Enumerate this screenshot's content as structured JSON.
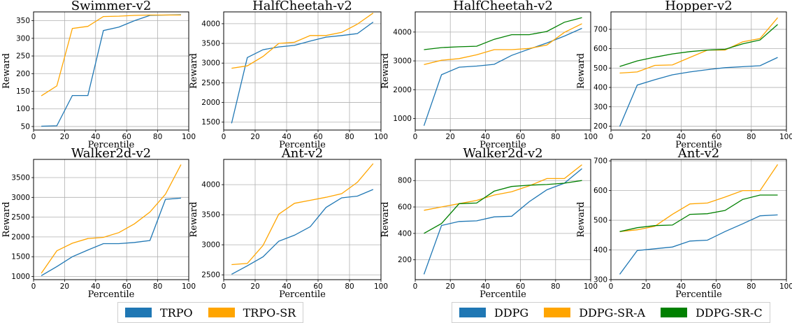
{
  "colors": {
    "TRPO": "#1f77b4",
    "TRPO-SR": "#ffa500",
    "DDPG": "#1f77b4",
    "DDPG-SR-A": "#ffa500",
    "DDPG-SR-C": "#008000"
  },
  "legends": [
    {
      "items": [
        "TRPO",
        "TRPO-SR"
      ]
    },
    {
      "items": [
        "DDPG",
        "DDPG-SR-A",
        "DDPG-SR-C"
      ]
    }
  ],
  "chart_data": [
    {
      "type": "line",
      "title": "Swimmer-v2",
      "xlabel": "Percentile",
      "ylabel": "Reward",
      "xlim": [
        0,
        100
      ],
      "ylim": [
        40,
        375
      ],
      "xticks": [
        0,
        20,
        40,
        60,
        80,
        100
      ],
      "yticks": [
        50,
        100,
        150,
        200,
        250,
        300,
        350
      ],
      "x": [
        5,
        15,
        25,
        35,
        45,
        55,
        65,
        75,
        85,
        95
      ],
      "series": [
        {
          "name": "TRPO",
          "values": [
            51,
            52,
            138,
            138,
            322,
            332,
            350,
            365,
            366,
            367
          ]
        },
        {
          "name": "TRPO-SR",
          "values": [
            137,
            165,
            328,
            334,
            362,
            363,
            365,
            366,
            366,
            366
          ]
        }
      ]
    },
    {
      "type": "line",
      "title": "HalfCheetah-v2",
      "xlabel": "Percentile",
      "ylabel": "Reward",
      "xlim": [
        0,
        100
      ],
      "ylim": [
        1300,
        4300
      ],
      "xticks": [
        0,
        20,
        40,
        60,
        80,
        100
      ],
      "yticks": [
        1500,
        2000,
        2500,
        3000,
        3500,
        4000
      ],
      "x": [
        5,
        15,
        25,
        35,
        45,
        55,
        65,
        75,
        85,
        95
      ],
      "series": [
        {
          "name": "TRPO",
          "values": [
            1470,
            3140,
            3340,
            3410,
            3450,
            3560,
            3660,
            3700,
            3750,
            4040
          ]
        },
        {
          "name": "TRPO-SR",
          "values": [
            2870,
            2930,
            3170,
            3500,
            3530,
            3700,
            3700,
            3780,
            3990,
            4270
          ]
        }
      ]
    },
    {
      "type": "line",
      "title": "HalfCheetah-v2",
      "xlabel": "Percentile",
      "ylabel": "Reward",
      "xlim": [
        0,
        100
      ],
      "ylim": [
        600,
        4700
      ],
      "xticks": [
        0,
        20,
        40,
        60,
        80,
        100
      ],
      "yticks": [
        1000,
        2000,
        3000,
        4000
      ],
      "x": [
        5,
        15,
        25,
        35,
        45,
        55,
        65,
        75,
        85,
        95
      ],
      "series": [
        {
          "name": "DDPG",
          "values": [
            750,
            2520,
            2780,
            2820,
            2880,
            3190,
            3410,
            3620,
            3860,
            4130
          ]
        },
        {
          "name": "DDPG-SR-A",
          "values": [
            2870,
            3020,
            3080,
            3210,
            3390,
            3390,
            3430,
            3550,
            3990,
            4290
          ]
        },
        {
          "name": "DDPG-SR-C",
          "values": [
            3390,
            3460,
            3490,
            3510,
            3750,
            3910,
            3910,
            4020,
            4340,
            4500
          ]
        }
      ]
    },
    {
      "type": "line",
      "title": "Hopper-v2",
      "xlabel": "Percentile",
      "ylabel": "Reward",
      "xlim": [
        0,
        100
      ],
      "ylim": [
        180,
        790
      ],
      "xticks": [
        0,
        20,
        40,
        60,
        80,
        100
      ],
      "yticks": [
        200,
        300,
        400,
        500,
        600,
        700
      ],
      "x": [
        5,
        15,
        25,
        35,
        45,
        55,
        65,
        75,
        85,
        95
      ],
      "series": [
        {
          "name": "DDPG",
          "values": [
            198,
            412,
            440,
            465,
            480,
            492,
            502,
            507,
            512,
            555
          ]
        },
        {
          "name": "DDPG-SR-A",
          "values": [
            474,
            480,
            514,
            516,
            555,
            593,
            593,
            635,
            652,
            760
          ]
        },
        {
          "name": "DDPG-SR-C",
          "values": [
            508,
            537,
            556,
            573,
            585,
            593,
            597,
            625,
            645,
            725
          ]
        }
      ]
    },
    {
      "type": "line",
      "title": "Walker2d-v2",
      "xlabel": "Percentile",
      "ylabel": "Reward",
      "xlim": [
        0,
        100
      ],
      "ylim": [
        920,
        3960
      ],
      "xticks": [
        0,
        20,
        40,
        60,
        80,
        100
      ],
      "yticks": [
        1000,
        1500,
        2000,
        2500,
        3000,
        3500
      ],
      "x": [
        5,
        15,
        25,
        35,
        45,
        55,
        65,
        75,
        85,
        95
      ],
      "series": [
        {
          "name": "TRPO",
          "values": [
            1020,
            1250,
            1500,
            1670,
            1830,
            1830,
            1860,
            1910,
            2950,
            2980
          ]
        },
        {
          "name": "TRPO-SR",
          "values": [
            1080,
            1650,
            1840,
            1960,
            1990,
            2110,
            2330,
            2630,
            3080,
            3830
          ]
        }
      ]
    },
    {
      "type": "line",
      "title": "Ant-v2",
      "xlabel": "Percentile",
      "ylabel": "Reward",
      "xlim": [
        0,
        100
      ],
      "ylim": [
        2420,
        4420
      ],
      "xticks": [
        0,
        20,
        40,
        60,
        80,
        100
      ],
      "yticks": [
        2500,
        3000,
        3500,
        4000
      ],
      "x": [
        5,
        15,
        25,
        35,
        45,
        55,
        65,
        75,
        85,
        95
      ],
      "series": [
        {
          "name": "TRPO",
          "values": [
            2510,
            2650,
            2800,
            3060,
            3160,
            3300,
            3620,
            3780,
            3810,
            3920
          ]
        },
        {
          "name": "TRPO-SR",
          "values": [
            2670,
            2690,
            2990,
            3510,
            3690,
            3740,
            3790,
            3850,
            4040,
            4350
          ]
        }
      ]
    },
    {
      "type": "line",
      "title": "Walker2d-v2",
      "xlabel": "Percentile",
      "ylabel": "Reward",
      "xlim": [
        0,
        100
      ],
      "ylim": [
        50,
        960
      ],
      "xticks": [
        0,
        20,
        40,
        60,
        80,
        100
      ],
      "yticks": [
        200,
        400,
        600,
        800
      ],
      "x": [
        5,
        15,
        25,
        35,
        45,
        55,
        65,
        75,
        85,
        95
      ],
      "series": [
        {
          "name": "DDPG",
          "values": [
            90,
            460,
            490,
            495,
            525,
            530,
            640,
            730,
            780,
            890
          ]
        },
        {
          "name": "DDPG-SR-A",
          "values": [
            575,
            600,
            625,
            650,
            690,
            715,
            760,
            815,
            815,
            920
          ]
        },
        {
          "name": "DDPG-SR-C",
          "values": [
            400,
            475,
            625,
            630,
            720,
            755,
            765,
            770,
            780,
            800
          ]
        }
      ]
    },
    {
      "type": "line",
      "title": "Ant-v2",
      "xlabel": "Percentile",
      "ylabel": "Reward",
      "xlim": [
        0,
        100
      ],
      "ylim": [
        300,
        705
      ],
      "xticks": [
        0,
        20,
        40,
        60,
        80,
        100
      ],
      "yticks": [
        300,
        400,
        500,
        600,
        700
      ],
      "x": [
        5,
        15,
        25,
        35,
        45,
        55,
        65,
        75,
        85,
        95
      ],
      "series": [
        {
          "name": "DDPG",
          "values": [
            318,
            398,
            404,
            410,
            430,
            433,
            462,
            488,
            515,
            518
          ]
        },
        {
          "name": "DDPG-SR-A",
          "values": [
            462,
            468,
            480,
            520,
            555,
            558,
            578,
            600,
            600,
            688
          ]
        },
        {
          "name": "DDPG-SR-C",
          "values": [
            462,
            475,
            482,
            484,
            520,
            522,
            533,
            570,
            585,
            585
          ]
        }
      ]
    }
  ]
}
